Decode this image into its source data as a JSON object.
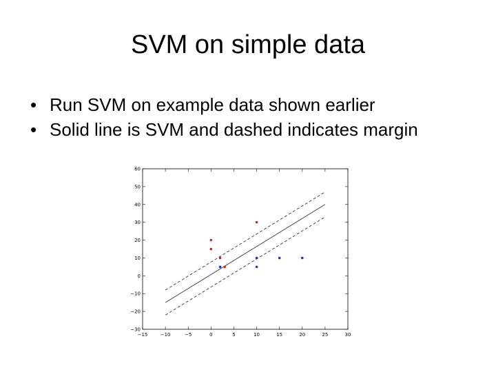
{
  "slide": {
    "title": "SVM on simple data",
    "bullets": [
      "Run SVM on example data shown earlier",
      "Solid line is SVM and dashed indicates margin"
    ]
  },
  "chart_data": {
    "type": "scatter",
    "title": "",
    "xlabel": "",
    "ylabel": "",
    "xlim": [
      -15,
      30
    ],
    "ylim": [
      -30,
      60
    ],
    "xticks": [
      -15,
      -10,
      -5,
      0,
      5,
      10,
      15,
      20,
      25,
      30
    ],
    "yticks": [
      -30,
      -20,
      -10,
      0,
      10,
      20,
      30,
      40,
      50,
      60
    ],
    "tick_labels": {
      "x": [
        "−15",
        "−10",
        "−5",
        "0",
        "5",
        "10",
        "15",
        "20",
        "25",
        "30"
      ],
      "y": [
        "−30",
        "−20",
        "−10",
        "0",
        "10",
        "20",
        "30",
        "40",
        "50",
        "60"
      ]
    },
    "grid": false,
    "series": [
      {
        "color": "#cc2222",
        "points": [
          [
            0,
            20
          ],
          [
            0,
            15
          ],
          [
            2,
            10
          ],
          [
            3,
            5
          ],
          [
            10,
            30
          ]
        ]
      },
      {
        "color": "#2233bb",
        "points": [
          [
            2,
            5
          ],
          [
            10,
            10
          ],
          [
            10,
            5
          ],
          [
            15,
            10
          ],
          [
            20,
            10
          ]
        ]
      }
    ],
    "lines": [
      {
        "style": "solid",
        "x": [
          -10,
          25
        ],
        "y": [
          -15,
          40
        ]
      },
      {
        "style": "dashed",
        "x": [
          -10,
          25
        ],
        "y": [
          -8,
          47
        ]
      },
      {
        "style": "dashed",
        "x": [
          -10,
          25
        ],
        "y": [
          -22,
          33
        ]
      }
    ]
  }
}
